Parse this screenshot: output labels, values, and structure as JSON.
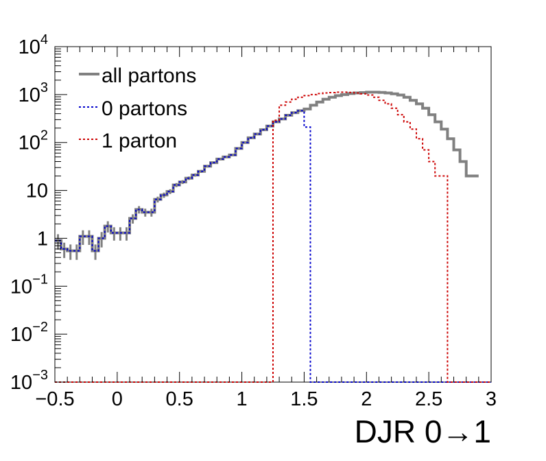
{
  "chart_data": {
    "type": "line",
    "title": "",
    "xlabel": "DJR 0→1",
    "ylabel": "",
    "xlim": [
      -0.5,
      3.0
    ],
    "ylim": [
      0.001,
      10000
    ],
    "yscale": "log",
    "bin_width": 0.05,
    "grid": false,
    "legend_position": "top-left",
    "x_ticks": [
      "−0.5",
      "0",
      "0.5",
      "1",
      "1.5",
      "2",
      "2.5",
      "3"
    ],
    "y_ticks": [
      {
        "base": "10",
        "exp": "−3"
      },
      {
        "base": "10",
        "exp": "−2"
      },
      {
        "base": "10",
        "exp": "−1"
      },
      {
        "base": "1",
        "exp": ""
      },
      {
        "base": "10",
        "exp": ""
      },
      {
        "base": "10",
        "exp": "2"
      },
      {
        "base": "10",
        "exp": "3"
      },
      {
        "base": "10",
        "exp": "4"
      }
    ],
    "colors": {
      "all_partons": "#808080",
      "zero_partons": "#0000cc",
      "one_parton": "#cc0000"
    },
    "series": [
      {
        "name": "all partons",
        "bins_from": -0.5,
        "values": [
          0.9,
          0.6,
          0.55,
          0.55,
          1.1,
          1.1,
          0.55,
          1.0,
          1.8,
          1.3,
          1.3,
          1.3,
          2.6,
          4.0,
          3.5,
          3.5,
          6.5,
          8.0,
          9.5,
          13,
          15,
          18,
          21,
          25,
          32,
          38,
          45,
          50,
          55,
          75,
          100,
          125,
          150,
          185,
          220,
          270,
          310,
          370,
          420,
          460,
          500,
          600,
          700,
          800,
          880,
          950,
          1000,
          1050,
          1080,
          1100,
          1120,
          1120,
          1110,
          1080,
          1040,
          980,
          880,
          760,
          640,
          520,
          380,
          270,
          190,
          120,
          70,
          40,
          20,
          20
        ],
        "error_bar_bins_upto": 1.25
      },
      {
        "name": "0 partons",
        "bins_from": -0.5,
        "values": [
          0.9,
          0.6,
          0.55,
          0.55,
          1.1,
          1.1,
          0.55,
          1.0,
          1.8,
          1.3,
          1.3,
          1.3,
          2.6,
          4.0,
          3.5,
          3.5,
          6.5,
          8.0,
          9.5,
          13,
          15,
          18,
          21,
          25,
          32,
          38,
          45,
          50,
          55,
          75,
          100,
          125,
          150,
          185,
          220,
          270,
          310,
          370,
          420,
          460,
          210
        ],
        "value_elsewhere": 0.001
      },
      {
        "name": "1 parton",
        "bins_from": 1.25,
        "values": [
          290,
          600,
          700,
          800,
          880,
          950,
          1000,
          1050,
          1080,
          1100,
          1120,
          1120,
          1110,
          1080,
          1040,
          980,
          880,
          760,
          640,
          520,
          380,
          270,
          190,
          120,
          70,
          40,
          20,
          20
        ],
        "value_elsewhere": 0.001
      }
    ]
  }
}
